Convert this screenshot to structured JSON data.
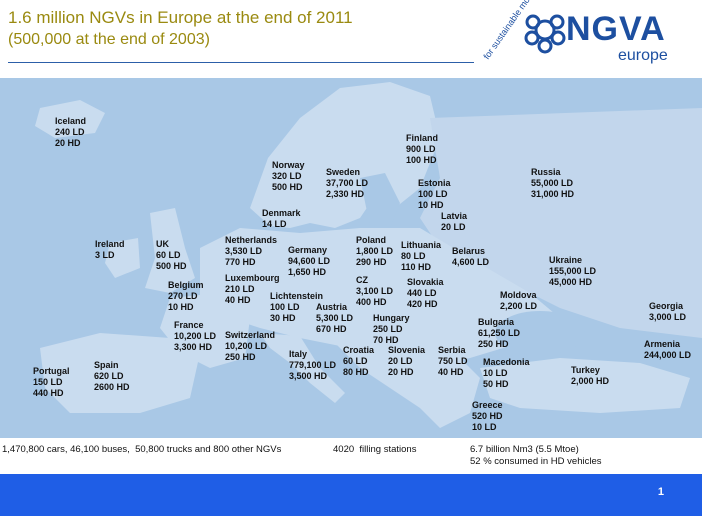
{
  "header": {
    "title": "1.6 million NGVs in Europe at the end of 2011",
    "subtitle": "(500,000 at the end of 2003)"
  },
  "logo": {
    "word": "NGVA",
    "sub": "europe",
    "arc_text": "for sustainable mobility"
  },
  "countries": [
    {
      "name": "Iceland",
      "lines": [
        "240 LD",
        "20 HD"
      ]
    },
    {
      "name": "Finland",
      "lines": [
        "900 LD",
        "100 HD"
      ]
    },
    {
      "name": "Norway",
      "lines": [
        "320 LD",
        "500 HD"
      ]
    },
    {
      "name": "Sweden",
      "lines": [
        "37,700 LD",
        "2,330 HD"
      ]
    },
    {
      "name": "Russia",
      "lines": [
        "55,000 LD",
        "31,000 HD"
      ]
    },
    {
      "name": "Estonia",
      "lines": [
        "100 LD",
        "10 HD"
      ]
    },
    {
      "name": "Latvia",
      "lines": [
        "20 LD"
      ]
    },
    {
      "name": "Denmark",
      "lines": [
        "14 LD"
      ]
    },
    {
      "name": "Ireland",
      "lines": [
        "3 LD"
      ]
    },
    {
      "name": "UK",
      "lines": [
        "60 LD",
        "500 HD"
      ]
    },
    {
      "name": "Netherlands",
      "lines": [
        "3,530 LD",
        "770 HD"
      ]
    },
    {
      "name": "Germany",
      "lines": [
        "94,600 LD",
        "1,650 HD"
      ]
    },
    {
      "name": "Poland",
      "lines": [
        "1,800 LD",
        "290 HD"
      ]
    },
    {
      "name": "Lithuania",
      "lines": [
        "80 LD",
        "110 HD"
      ]
    },
    {
      "name": "Belarus",
      "lines": [
        "4,600 LD"
      ]
    },
    {
      "name": "Ukraine",
      "lines": [
        "155,000 LD",
        "45,000 HD"
      ]
    },
    {
      "name": "Belgium",
      "lines": [
        "270 LD",
        "10 HD"
      ]
    },
    {
      "name": "Luxembourg",
      "lines": [
        "210 LD",
        "40 HD"
      ]
    },
    {
      "name": "Lichtenstein",
      "lines": [
        "100 LD",
        "30 HD"
      ]
    },
    {
      "name": "CZ",
      "lines": [
        "3,100 LD",
        "400 HD"
      ]
    },
    {
      "name": "Slovakia",
      "lines": [
        "440 LD",
        "420 HD"
      ]
    },
    {
      "name": "Austria",
      "lines": [
        "5,300 LD",
        "670 HD"
      ]
    },
    {
      "name": "Moldova",
      "lines": [
        "2,200 LD"
      ]
    },
    {
      "name": "Georgia",
      "lines": [
        "3,000 LD"
      ]
    },
    {
      "name": "France",
      "lines": [
        "10,200 LD",
        "3,300 HD"
      ]
    },
    {
      "name": "Switzerland",
      "lines": [
        "10,200 LD",
        "250 HD"
      ]
    },
    {
      "name": "Hungary",
      "lines": [
        "250 LD",
        "70 HD"
      ]
    },
    {
      "name": "Bulgaria",
      "lines": [
        "61,250 LD",
        "250 HD"
      ]
    },
    {
      "name": "Armenia",
      "lines": [
        "244,000 LD"
      ]
    },
    {
      "name": "Italy",
      "lines": [
        "779,100 LD",
        "3,500 HD"
      ]
    },
    {
      "name": "Croatia",
      "lines": [
        "60 LD",
        "80 HD"
      ]
    },
    {
      "name": "Slovenia",
      "lines": [
        "20 LD",
        "20 HD"
      ]
    },
    {
      "name": "Serbia",
      "lines": [
        "750 LD",
        "40 HD"
      ]
    },
    {
      "name": "Macedonia",
      "lines": [
        "10 LD",
        "50 HD"
      ]
    },
    {
      "name": "Turkey",
      "lines": [
        "2,000 HD"
      ]
    },
    {
      "name": "Portugal",
      "lines": [
        "150 LD",
        "440 HD"
      ]
    },
    {
      "name": "Spain",
      "lines": [
        "620 LD",
        "2600 HD"
      ]
    },
    {
      "name": "Greece",
      "lines": [
        "520 HD",
        "10 LD"
      ]
    }
  ],
  "stats": {
    "vehicles": "1,470,800 cars, 46,100 buses,  50,800 trucks and 800 other NGVs",
    "stations": "4020  filling stations",
    "gas_line1": "6.7 billion Nm3 (5.5 Mtoe)",
    "gas_line2": "52 % consumed in HD vehicles"
  },
  "footer": {
    "page_number": "1",
    "color": "#1f5ee6"
  },
  "colors": {
    "sea": "#a9c8e6",
    "land": "#c9dcef",
    "title": "#9a8a10",
    "logo": "#1d4fa0"
  }
}
